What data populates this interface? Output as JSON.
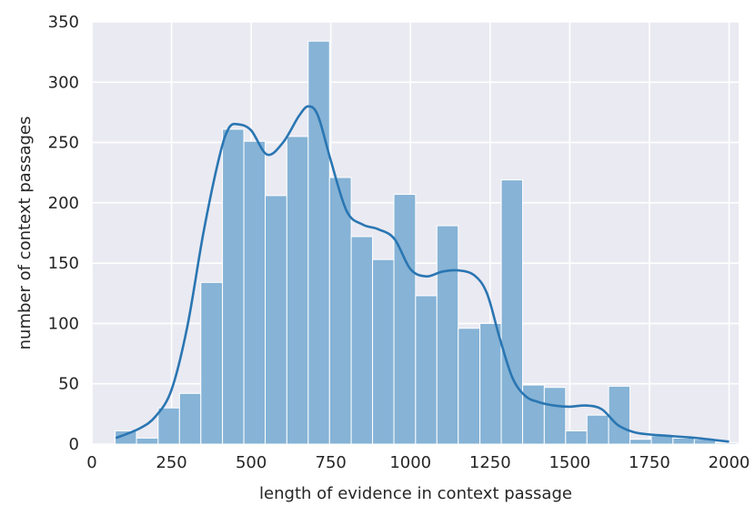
{
  "chart_data": {
    "type": "bar",
    "subtype": "histogram-with-kde",
    "xlabel": "length of evidence in context passage",
    "ylabel": "number of context passages",
    "xlim": [
      0,
      2030
    ],
    "ylim": [
      0,
      350
    ],
    "xticks": [
      0,
      250,
      500,
      750,
      1000,
      1250,
      1500,
      1750,
      2000
    ],
    "yticks": [
      0,
      50,
      100,
      150,
      200,
      250,
      300,
      350
    ],
    "grid": true,
    "colors": {
      "background": "#eaeaf2",
      "grid": "#ffffff",
      "bar_fill": "#86b3d6",
      "bar_edge": "#ffffff",
      "kde_line": "#2a76b2"
    },
    "bin_edges": [
      73,
      140,
      208,
      275,
      342,
      410,
      477,
      544,
      612,
      679,
      746,
      814,
      881,
      948,
      1016,
      1083,
      1150,
      1218,
      1285,
      1352,
      1420,
      1487,
      1554,
      1622,
      1689,
      1756,
      1824,
      1891,
      1958,
      2025
    ],
    "counts": [
      11,
      5,
      30,
      42,
      134,
      261,
      251,
      206,
      255,
      334,
      221,
      172,
      153,
      207,
      123,
      181,
      96,
      100,
      219,
      49,
      47,
      11,
      24,
      48,
      4,
      7,
      5,
      4,
      1
    ],
    "kde": {
      "x": [
        75,
        150,
        200,
        250,
        300,
        350,
        400,
        430,
        460,
        500,
        550,
        600,
        650,
        680,
        710,
        750,
        800,
        850,
        900,
        950,
        1000,
        1050,
        1100,
        1150,
        1200,
        1240,
        1280,
        1320,
        1360,
        1400,
        1450,
        1500,
        1550,
        1600,
        1650,
        1700,
        1750,
        1800,
        1900,
        2000
      ],
      "y": [
        5,
        13,
        23,
        45,
        98,
        175,
        238,
        262,
        265,
        260,
        240,
        250,
        272,
        280,
        272,
        235,
        193,
        182,
        178,
        170,
        145,
        139,
        143,
        144,
        140,
        125,
        88,
        55,
        40,
        35,
        32,
        31,
        32,
        29,
        16,
        10,
        8,
        7,
        5,
        2
      ]
    }
  }
}
